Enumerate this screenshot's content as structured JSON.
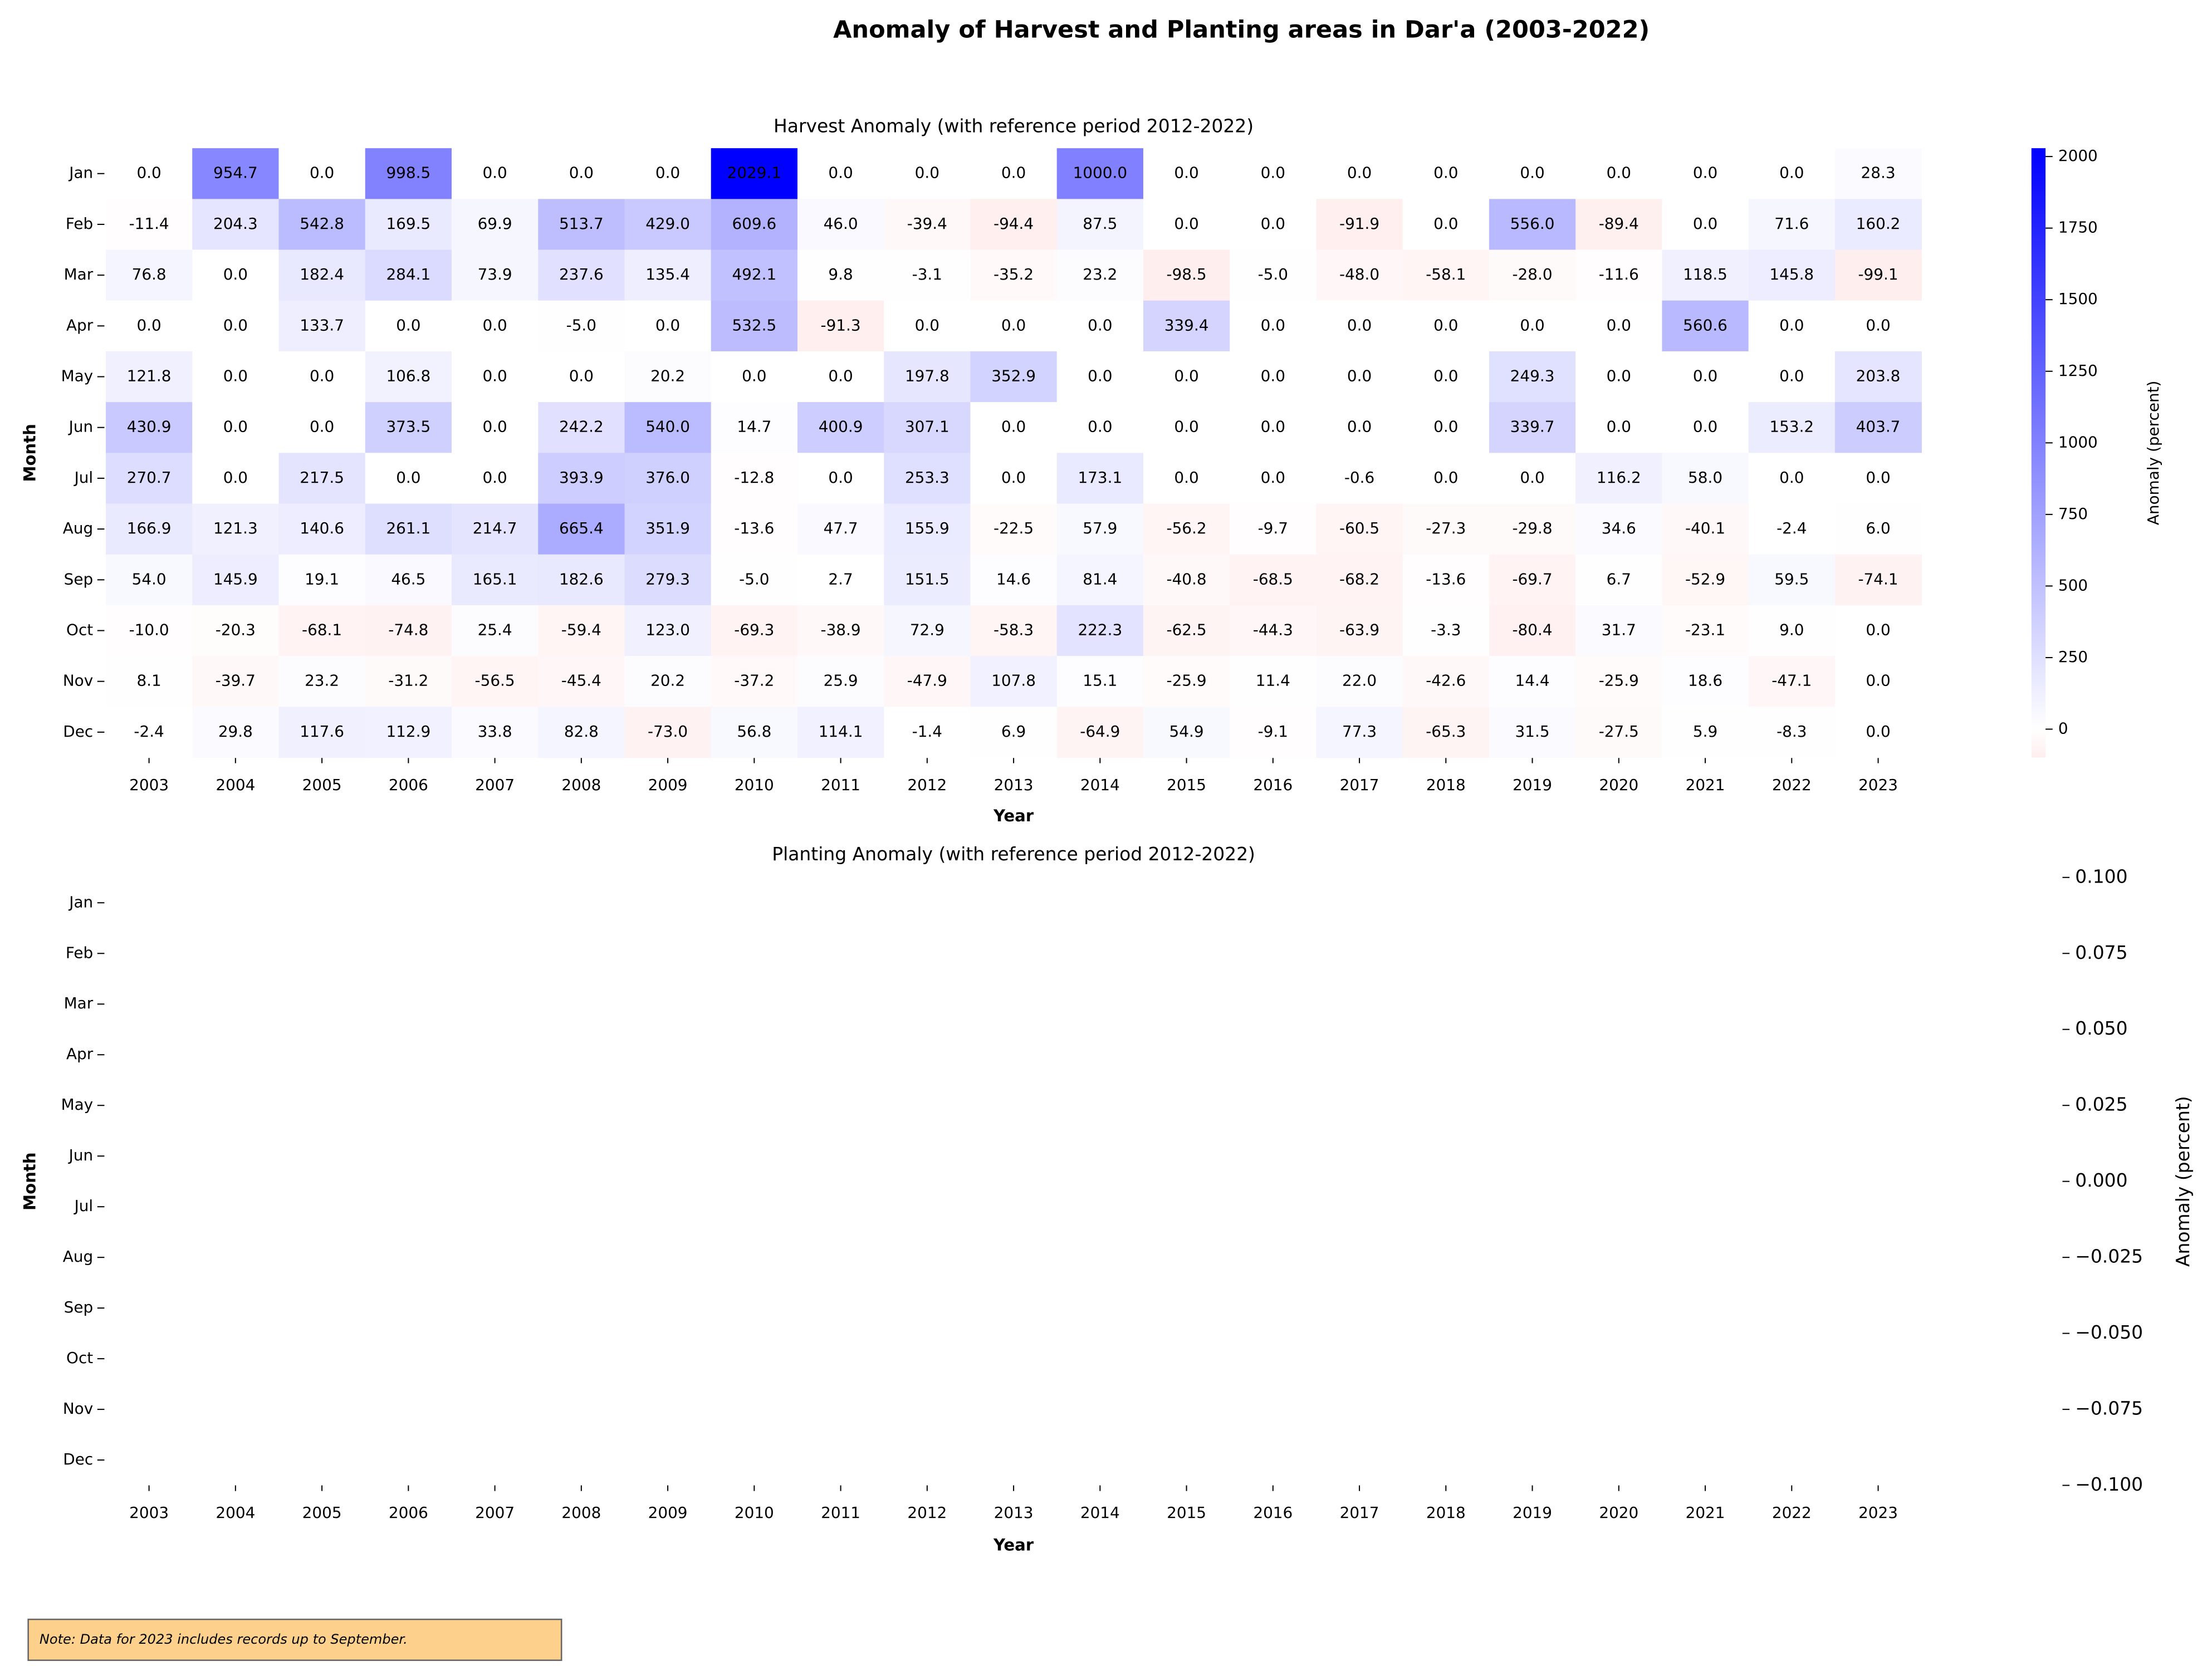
{
  "title": "Anomaly of Harvest and Planting areas in Dar'a (2003-2022)",
  "note": "Note: Data for 2023 includes records up to September.",
  "chart_data": [
    {
      "type": "heatmap",
      "title": "Harvest Anomaly (with reference period 2012-2022)",
      "xlabel": "Year",
      "ylabel": "Month",
      "x": [
        "2003",
        "2004",
        "2005",
        "2006",
        "2007",
        "2008",
        "2009",
        "2010",
        "2011",
        "2012",
        "2013",
        "2014",
        "2015",
        "2016",
        "2017",
        "2018",
        "2019",
        "2020",
        "2021",
        "2022",
        "2023"
      ],
      "y": [
        "Jan",
        "Feb",
        "Mar",
        "Apr",
        "May",
        "Jun",
        "Jul",
        "Aug",
        "Sep",
        "Oct",
        "Nov",
        "Dec"
      ],
      "values": [
        [
          0,
          954.7,
          0,
          998.5,
          0,
          0,
          0,
          2029.1,
          0,
          0,
          0,
          1000,
          0,
          0,
          0,
          0,
          0,
          0,
          0,
          0,
          28.3
        ],
        [
          -11.4,
          204.3,
          542.8,
          169.5,
          69.9,
          513.7,
          429,
          609.6,
          46,
          -39.4,
          -94.4,
          87.5,
          0,
          0,
          -91.9,
          0,
          556,
          -89.4,
          0,
          71.6,
          160.2
        ],
        [
          76.8,
          0,
          182.4,
          284.1,
          73.9,
          237.6,
          135.4,
          492.1,
          9.8,
          -3.1,
          -35.2,
          23.2,
          -98.5,
          -5,
          -48,
          -58.1,
          -28,
          -11.6,
          118.5,
          145.8,
          -99.1
        ],
        [
          0,
          0,
          133.7,
          0,
          0,
          -5,
          0,
          532.5,
          -91.3,
          0,
          0,
          0,
          339.4,
          0,
          0,
          0,
          0,
          0,
          560.6,
          0,
          0
        ],
        [
          121.8,
          0,
          0,
          106.8,
          0,
          0,
          20.2,
          0,
          0,
          197.8,
          352.9,
          0,
          0,
          0,
          0,
          0,
          249.3,
          0,
          0,
          0,
          203.8
        ],
        [
          430.9,
          0,
          0,
          373.5,
          0,
          242.2,
          540,
          14.7,
          400.9,
          307.1,
          0,
          0,
          0,
          0,
          0,
          0,
          339.7,
          0,
          0,
          153.2,
          403.7
        ],
        [
          270.7,
          0,
          217.5,
          0,
          0,
          393.9,
          376,
          -12.8,
          0,
          253.3,
          0,
          173.1,
          0,
          0,
          -0.6,
          0,
          0,
          116.2,
          58,
          0,
          0
        ],
        [
          166.9,
          121.3,
          140.6,
          261.1,
          214.7,
          665.4,
          351.9,
          -13.6,
          47.7,
          155.9,
          -22.5,
          57.9,
          -56.2,
          -9.7,
          -60.5,
          -27.3,
          -29.8,
          34.6,
          -40.1,
          -2.4,
          6
        ],
        [
          54,
          145.9,
          19.1,
          46.5,
          165.1,
          182.6,
          279.3,
          -5,
          2.7,
          151.5,
          14.6,
          81.4,
          -40.8,
          -68.5,
          -68.2,
          -13.6,
          -69.7,
          6.7,
          -52.9,
          59.5,
          -74.1
        ],
        [
          -10,
          -20.3,
          -68.1,
          -74.8,
          25.4,
          -59.4,
          123,
          -69.3,
          -38.9,
          72.9,
          -58.3,
          222.3,
          -62.5,
          -44.3,
          -63.9,
          -3.3,
          -80.4,
          31.7,
          -23.1,
          9,
          0
        ],
        [
          8.1,
          -39.7,
          23.2,
          -31.2,
          -56.5,
          -45.4,
          20.2,
          -37.2,
          25.9,
          -47.9,
          107.8,
          15.1,
          -25.9,
          11.4,
          22,
          -42.6,
          14.4,
          -25.9,
          18.6,
          -47.1,
          0
        ],
        [
          -2.4,
          29.8,
          117.6,
          112.9,
          33.8,
          82.8,
          -73,
          56.8,
          114.1,
          -1.4,
          6.9,
          -64.9,
          54.9,
          -9.1,
          77.3,
          -65.3,
          31.5,
          -27.5,
          5.9,
          -8.3,
          0
        ]
      ],
      "value_labels": [
        [
          "0.0",
          "954.7",
          "0.0",
          "998.5",
          "0.0",
          "0.0",
          "0.0",
          "2029.1",
          "0.0",
          "0.0",
          "0.0",
          "1000.0",
          "0.0",
          "0.0",
          "0.0",
          "0.0",
          "0.0",
          "0.0",
          "0.0",
          "0.0",
          "28.3"
        ],
        [
          "-11.4",
          "204.3",
          "542.8",
          "169.5",
          "69.9",
          "513.7",
          "429.0",
          "609.6",
          "46.0",
          "-39.4",
          "-94.4",
          "87.5",
          "0.0",
          "0.0",
          "-91.9",
          "0.0",
          "556.0",
          "-89.4",
          "0.0",
          "71.6",
          "160.2"
        ],
        [
          "76.8",
          "0.0",
          "182.4",
          "284.1",
          "73.9",
          "237.6",
          "135.4",
          "492.1",
          "9.8",
          "-3.1",
          "-35.2",
          "23.2",
          "-98.5",
          "-5.0",
          "-48.0",
          "-58.1",
          "-28.0",
          "-11.6",
          "118.5",
          "145.8",
          "-99.1"
        ],
        [
          "0.0",
          "0.0",
          "133.7",
          "0.0",
          "0.0",
          "-5.0",
          "0.0",
          "532.5",
          "-91.3",
          "0.0",
          "0.0",
          "0.0",
          "339.4",
          "0.0",
          "0.0",
          "0.0",
          "0.0",
          "0.0",
          "560.6",
          "0.0",
          "0.0"
        ],
        [
          "121.8",
          "0.0",
          "0.0",
          "106.8",
          "0.0",
          "0.0",
          "20.2",
          "0.0",
          "0.0",
          "197.8",
          "352.9",
          "0.0",
          "0.0",
          "0.0",
          "0.0",
          "0.0",
          "249.3",
          "0.0",
          "0.0",
          "0.0",
          "203.8"
        ],
        [
          "430.9",
          "0.0",
          "0.0",
          "373.5",
          "0.0",
          "242.2",
          "540.0",
          "14.7",
          "400.9",
          "307.1",
          "0.0",
          "0.0",
          "0.0",
          "0.0",
          "0.0",
          "0.0",
          "339.7",
          "0.0",
          "0.0",
          "153.2",
          "403.7"
        ],
        [
          "270.7",
          "0.0",
          "217.5",
          "0.0",
          "0.0",
          "393.9",
          "376.0",
          "-12.8",
          "0.0",
          "253.3",
          "0.0",
          "173.1",
          "0.0",
          "0.0",
          "-0.6",
          "0.0",
          "0.0",
          "116.2",
          "58.0",
          "0.0",
          "0.0"
        ],
        [
          "166.9",
          "121.3",
          "140.6",
          "261.1",
          "214.7",
          "665.4",
          "351.9",
          "-13.6",
          "47.7",
          "155.9",
          "-22.5",
          "57.9",
          "-56.2",
          "-9.7",
          "-60.5",
          "-27.3",
          "-29.8",
          "34.6",
          "-40.1",
          "-2.4",
          "6.0"
        ],
        [
          "54.0",
          "145.9",
          "19.1",
          "46.5",
          "165.1",
          "182.6",
          "279.3",
          "-5.0",
          "2.7",
          "151.5",
          "14.6",
          "81.4",
          "-40.8",
          "-68.5",
          "-68.2",
          "-13.6",
          "-69.7",
          "6.7",
          "-52.9",
          "59.5",
          "-74.1"
        ],
        [
          "-10.0",
          "-20.3",
          "-68.1",
          "-74.8",
          "25.4",
          "-59.4",
          "123.0",
          "-69.3",
          "-38.9",
          "72.9",
          "-58.3",
          "222.3",
          "-62.5",
          "-44.3",
          "-63.9",
          "-3.3",
          "-80.4",
          "31.7",
          "-23.1",
          "9.0",
          "0.0"
        ],
        [
          "8.1",
          "-39.7",
          "23.2",
          "-31.2",
          "-56.5",
          "-45.4",
          "20.2",
          "-37.2",
          "25.9",
          "-47.9",
          "107.8",
          "15.1",
          "-25.9",
          "11.4",
          "22.0",
          "-42.6",
          "14.4",
          "-25.9",
          "18.6",
          "-47.1",
          "0.0"
        ],
        [
          "-2.4",
          "29.8",
          "117.6",
          "112.9",
          "33.8",
          "82.8",
          "-73.0",
          "56.8",
          "114.1",
          "-1.4",
          "6.9",
          "-64.9",
          "54.9",
          "-9.1",
          "77.3",
          "-65.3",
          "31.5",
          "-27.5",
          "5.9",
          "-8.3",
          "0.0"
        ]
      ],
      "colorbar_label": "Anomaly (percent)",
      "clim": [
        -99.1,
        2029.1
      ],
      "vcenter": 0,
      "cticks": [
        0,
        250,
        500,
        750,
        1000,
        1250,
        1500,
        1750,
        2000
      ],
      "colors": [
        "#ffeeee",
        "#ffffff",
        "#0000ff"
      ]
    },
    {
      "type": "heatmap",
      "title": "Planting Anomaly (with reference period 2012-2022)",
      "xlabel": "Year",
      "ylabel": "Month",
      "x": [
        "2003",
        "2004",
        "2005",
        "2006",
        "2007",
        "2008",
        "2009",
        "2010",
        "2011",
        "2012",
        "2013",
        "2014",
        "2015",
        "2016",
        "2017",
        "2018",
        "2019",
        "2020",
        "2021",
        "2022",
        "2023"
      ],
      "y": [
        "Jan",
        "Feb",
        "Mar",
        "Apr",
        "May",
        "Jun",
        "Jul",
        "Aug",
        "Sep",
        "Oct",
        "Nov",
        "Dec"
      ],
      "colorbar_label": "Anomaly (percent)",
      "clim": [
        -0.1,
        0.1
      ],
      "cticks": [
        {
          "value": -0.1,
          "label": "−0.100"
        },
        {
          "value": -0.075,
          "label": "−0.075"
        },
        {
          "value": -0.05,
          "label": "−0.050"
        },
        {
          "value": -0.025,
          "label": "−0.025"
        },
        {
          "value": 0,
          "label": "0.000"
        },
        {
          "value": 0.025,
          "label": "0.025"
        },
        {
          "value": 0.05,
          "label": "0.050"
        },
        {
          "value": 0.075,
          "label": "0.075"
        },
        {
          "value": 0.1,
          "label": "0.100"
        }
      ]
    }
  ]
}
